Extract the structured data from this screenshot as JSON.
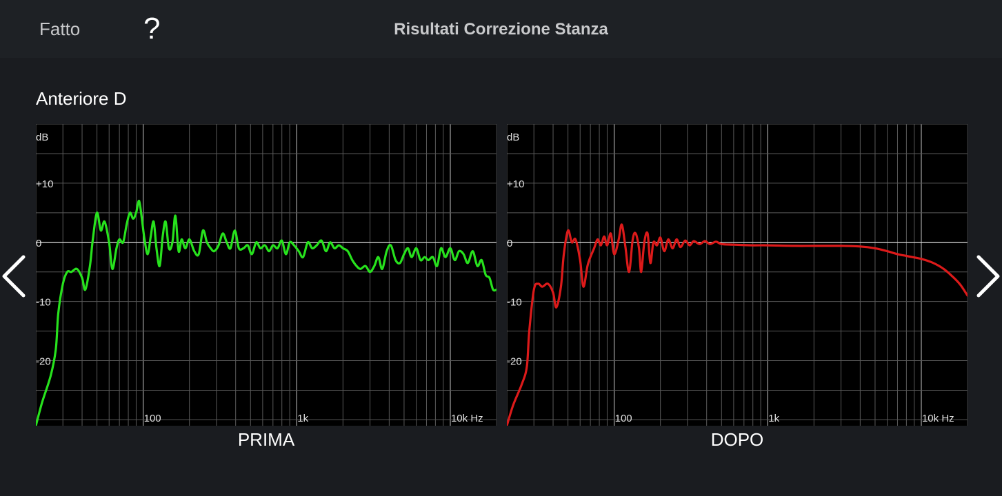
{
  "header": {
    "done_label": "Fatto",
    "help_label": "?",
    "title": "Risultati Correzione Stanza"
  },
  "channel": {
    "name": "Anteriore D"
  },
  "nav": {
    "prev_icon": "chevron-left-icon",
    "next_icon": "chevron-right-icon"
  },
  "chart_data": [
    {
      "type": "line",
      "name": "before",
      "caption": "PRIMA",
      "color": "#27e21d",
      "ylabel": "dB",
      "xlabel_unit": "Hz",
      "y_ticks": [
        {
          "value": 10,
          "label": "+10"
        },
        {
          "value": 0,
          "label": "0"
        },
        {
          "value": -10,
          "label": "-10"
        },
        {
          "value": -20,
          "label": "-20"
        }
      ],
      "x_ticks": [
        {
          "value": 100,
          "label": "100"
        },
        {
          "value": 1000,
          "label": "1k"
        },
        {
          "value": 10000,
          "label": "10k Hz"
        }
      ],
      "xlim": [
        20,
        20000
      ],
      "ylim": [
        -31,
        20
      ],
      "x_scale": "log",
      "grid": true,
      "points": [
        [
          20,
          -31
        ],
        [
          22,
          -27
        ],
        [
          25,
          -22.5
        ],
        [
          27,
          -18
        ],
        [
          28,
          -12
        ],
        [
          30,
          -7
        ],
        [
          32,
          -5
        ],
        [
          34,
          -5
        ],
        [
          37,
          -4.5
        ],
        [
          40,
          -6
        ],
        [
          42,
          -8
        ],
        [
          45,
          -4
        ],
        [
          47,
          0.5
        ],
        [
          50,
          5
        ],
        [
          53,
          2
        ],
        [
          56,
          3.5
        ],
        [
          60,
          0
        ],
        [
          63,
          -4.5
        ],
        [
          67,
          -1
        ],
        [
          70,
          0.5
        ],
        [
          74,
          0
        ],
        [
          78,
          3
        ],
        [
          82,
          5
        ],
        [
          86,
          4
        ],
        [
          90,
          5
        ],
        [
          94,
          7
        ],
        [
          98,
          4
        ],
        [
          102,
          0.5
        ],
        [
          107,
          -2
        ],
        [
          112,
          1
        ],
        [
          117,
          3.5
        ],
        [
          122,
          -1
        ],
        [
          128,
          -4
        ],
        [
          134,
          1
        ],
        [
          140,
          3.5
        ],
        [
          147,
          -1
        ],
        [
          155,
          0
        ],
        [
          162,
          4.5
        ],
        [
          170,
          -1.5
        ],
        [
          178,
          0.5
        ],
        [
          188,
          -1
        ],
        [
          200,
          0.5
        ],
        [
          215,
          -1.5
        ],
        [
          230,
          -2
        ],
        [
          245,
          2
        ],
        [
          260,
          0
        ],
        [
          275,
          -1
        ],
        [
          290,
          -1.5
        ],
        [
          310,
          -0.5
        ],
        [
          330,
          1.5
        ],
        [
          350,
          0
        ],
        [
          370,
          -1
        ],
        [
          395,
          2
        ],
        [
          420,
          -1
        ],
        [
          450,
          -1
        ],
        [
          480,
          -0.5
        ],
        [
          510,
          -2
        ],
        [
          545,
          0
        ],
        [
          580,
          -1
        ],
        [
          620,
          -0.5
        ],
        [
          660,
          -1.5
        ],
        [
          700,
          -0.5
        ],
        [
          750,
          -1
        ],
        [
          800,
          0.3
        ],
        [
          850,
          -2
        ],
        [
          900,
          0
        ],
        [
          960,
          -0.5
        ],
        [
          1030,
          -1.5
        ],
        [
          1100,
          -2.5
        ],
        [
          1180,
          0
        ],
        [
          1260,
          -1
        ],
        [
          1350,
          -0.5
        ],
        [
          1450,
          0.3
        ],
        [
          1550,
          -1.5
        ],
        [
          1650,
          0
        ],
        [
          1760,
          -1
        ],
        [
          1880,
          -0.5
        ],
        [
          2000,
          -1
        ],
        [
          2150,
          -1.5
        ],
        [
          2300,
          -3
        ],
        [
          2450,
          -4
        ],
        [
          2600,
          -4.5
        ],
        [
          2800,
          -4
        ],
        [
          3000,
          -5
        ],
        [
          3200,
          -4
        ],
        [
          3400,
          -2.5
        ],
        [
          3600,
          -4.5
        ],
        [
          3850,
          -1.5
        ],
        [
          4100,
          -0.5
        ],
        [
          4400,
          -3
        ],
        [
          4700,
          -3.5
        ],
        [
          5000,
          -2
        ],
        [
          5300,
          -1
        ],
        [
          5600,
          -2.5
        ],
        [
          6000,
          -1
        ],
        [
          6400,
          -3
        ],
        [
          6800,
          -2.5
        ],
        [
          7200,
          -3
        ],
        [
          7700,
          -2.5
        ],
        [
          8200,
          -4
        ],
        [
          8700,
          -1
        ],
        [
          9300,
          -2.5
        ],
        [
          10000,
          -1
        ],
        [
          10700,
          -3
        ],
        [
          11400,
          -1.5
        ],
        [
          12200,
          -2
        ],
        [
          13000,
          -3.5
        ],
        [
          14000,
          -1.5
        ],
        [
          15000,
          -4
        ],
        [
          16000,
          -3
        ],
        [
          17000,
          -5.5
        ],
        [
          18000,
          -6
        ],
        [
          19000,
          -8
        ],
        [
          20000,
          -8
        ]
      ]
    },
    {
      "type": "line",
      "name": "after",
      "caption": "DOPO",
      "color": "#dc1a1a",
      "ylabel": "dB",
      "xlabel_unit": "Hz",
      "y_ticks": [
        {
          "value": 10,
          "label": "+10"
        },
        {
          "value": 0,
          "label": "0"
        },
        {
          "value": -10,
          "label": "-10"
        },
        {
          "value": -20,
          "label": "-20"
        }
      ],
      "x_ticks": [
        {
          "value": 100,
          "label": "100"
        },
        {
          "value": 1000,
          "label": "1k"
        },
        {
          "value": 10000,
          "label": "10k Hz"
        }
      ],
      "xlim": [
        20,
        20000
      ],
      "ylim": [
        -31,
        20
      ],
      "x_scale": "log",
      "grid": true,
      "points": [
        [
          20,
          -31
        ],
        [
          22,
          -27.5
        ],
        [
          25,
          -24
        ],
        [
          27,
          -21
        ],
        [
          28,
          -15
        ],
        [
          30,
          -8
        ],
        [
          32,
          -7
        ],
        [
          34,
          -7.5
        ],
        [
          37,
          -7
        ],
        [
          40,
          -8.5
        ],
        [
          42,
          -11
        ],
        [
          45,
          -7.5
        ],
        [
          47,
          -2
        ],
        [
          50,
          2
        ],
        [
          53,
          0
        ],
        [
          56,
          0.5
        ],
        [
          60,
          -3
        ],
        [
          63,
          -7.5
        ],
        [
          67,
          -4
        ],
        [
          70,
          -2.5
        ],
        [
          74,
          -1
        ],
        [
          78,
          0.5
        ],
        [
          82,
          -0.5
        ],
        [
          86,
          1
        ],
        [
          90,
          -0.5
        ],
        [
          95,
          1.5
        ],
        [
          100,
          -2
        ],
        [
          107,
          0.5
        ],
        [
          112,
          3
        ],
        [
          118,
          -0.5
        ],
        [
          125,
          -5
        ],
        [
          132,
          0.5
        ],
        [
          138,
          1.5
        ],
        [
          145,
          -1
        ],
        [
          150,
          -5
        ],
        [
          157,
          0
        ],
        [
          165,
          1.5
        ],
        [
          172,
          -3.5
        ],
        [
          180,
          0
        ],
        [
          190,
          -0.5
        ],
        [
          200,
          0.8
        ],
        [
          212,
          -1.5
        ],
        [
          225,
          0.5
        ],
        [
          240,
          -1
        ],
        [
          255,
          0.5
        ],
        [
          270,
          -0.8
        ],
        [
          290,
          0.3
        ],
        [
          310,
          -0.5
        ],
        [
          330,
          0.2
        ],
        [
          360,
          -0.3
        ],
        [
          390,
          0.2
        ],
        [
          420,
          -0.3
        ],
        [
          460,
          0.1
        ],
        [
          500,
          -0.3
        ],
        [
          600,
          -0.4
        ],
        [
          800,
          -0.5
        ],
        [
          1000,
          -0.5
        ],
        [
          1500,
          -0.6
        ],
        [
          2000,
          -0.6
        ],
        [
          3000,
          -0.6
        ],
        [
          4000,
          -0.7
        ],
        [
          5000,
          -1
        ],
        [
          6000,
          -1.5
        ],
        [
          7000,
          -2
        ],
        [
          8000,
          -2.3
        ],
        [
          10000,
          -2.8
        ],
        [
          12000,
          -3.5
        ],
        [
          14000,
          -4.5
        ],
        [
          16000,
          -5.8
        ],
        [
          18000,
          -7.2
        ],
        [
          20000,
          -9
        ]
      ]
    }
  ]
}
